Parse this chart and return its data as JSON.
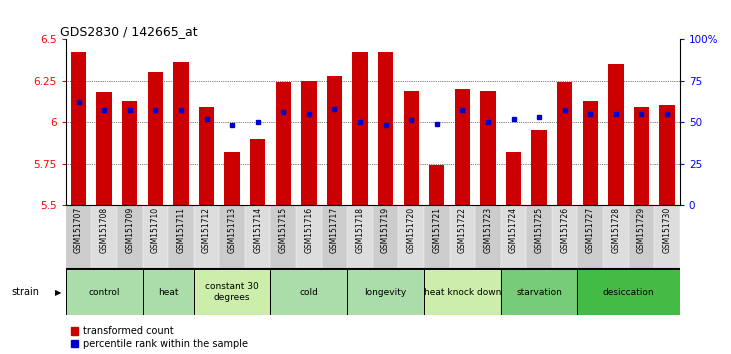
{
  "title": "GDS2830 / 142665_at",
  "samples": [
    "GSM151707",
    "GSM151708",
    "GSM151709",
    "GSM151710",
    "GSM151711",
    "GSM151712",
    "GSM151713",
    "GSM151714",
    "GSM151715",
    "GSM151716",
    "GSM151717",
    "GSM151718",
    "GSM151719",
    "GSM151720",
    "GSM151721",
    "GSM151722",
    "GSM151723",
    "GSM151724",
    "GSM151725",
    "GSM151726",
    "GSM151727",
    "GSM151728",
    "GSM151729",
    "GSM151730"
  ],
  "bar_values": [
    6.42,
    6.18,
    6.13,
    6.3,
    6.36,
    6.09,
    5.82,
    5.9,
    6.24,
    6.25,
    6.28,
    6.42,
    6.42,
    6.19,
    5.74,
    6.2,
    6.19,
    5.82,
    5.95,
    6.24,
    6.13,
    6.35,
    6.09,
    6.1
  ],
  "percentile_values": [
    62,
    57,
    57,
    57,
    57,
    52,
    48,
    50,
    56,
    55,
    58,
    50,
    48,
    51,
    49,
    57,
    50,
    52,
    53,
    57,
    55,
    55,
    55,
    55
  ],
  "groups": [
    {
      "label": "control",
      "start": 0,
      "end": 2,
      "color": "#aaddaa"
    },
    {
      "label": "heat",
      "start": 3,
      "end": 4,
      "color": "#aaddaa"
    },
    {
      "label": "constant 30\ndegrees",
      "start": 5,
      "end": 7,
      "color": "#cceeaa"
    },
    {
      "label": "cold",
      "start": 8,
      "end": 10,
      "color": "#aaddaa"
    },
    {
      "label": "longevity",
      "start": 11,
      "end": 13,
      "color": "#aaddaa"
    },
    {
      "label": "heat knock down",
      "start": 14,
      "end": 16,
      "color": "#cceeaa"
    },
    {
      "label": "starvation",
      "start": 17,
      "end": 19,
      "color": "#77cc77"
    },
    {
      "label": "desiccation",
      "start": 20,
      "end": 23,
      "color": "#44bb44"
    }
  ],
  "ylim": [
    5.5,
    6.5
  ],
  "yticks": [
    5.5,
    5.75,
    6.0,
    6.25,
    6.5
  ],
  "ytick_labels": [
    "5.5",
    "5.75",
    "6",
    "6.25",
    "6.5"
  ],
  "right_yticks": [
    0,
    25,
    50,
    75,
    100
  ],
  "right_ytick_labels": [
    "0",
    "25",
    "50",
    "75",
    "100%"
  ],
  "bar_color": "#cc0000",
  "dot_color": "#0000cc",
  "bar_width": 0.6,
  "background_color": "#ffffff",
  "legend_items": [
    {
      "label": "transformed count",
      "color": "#cc0000"
    },
    {
      "label": "percentile rank within the sample",
      "color": "#0000cc"
    }
  ]
}
